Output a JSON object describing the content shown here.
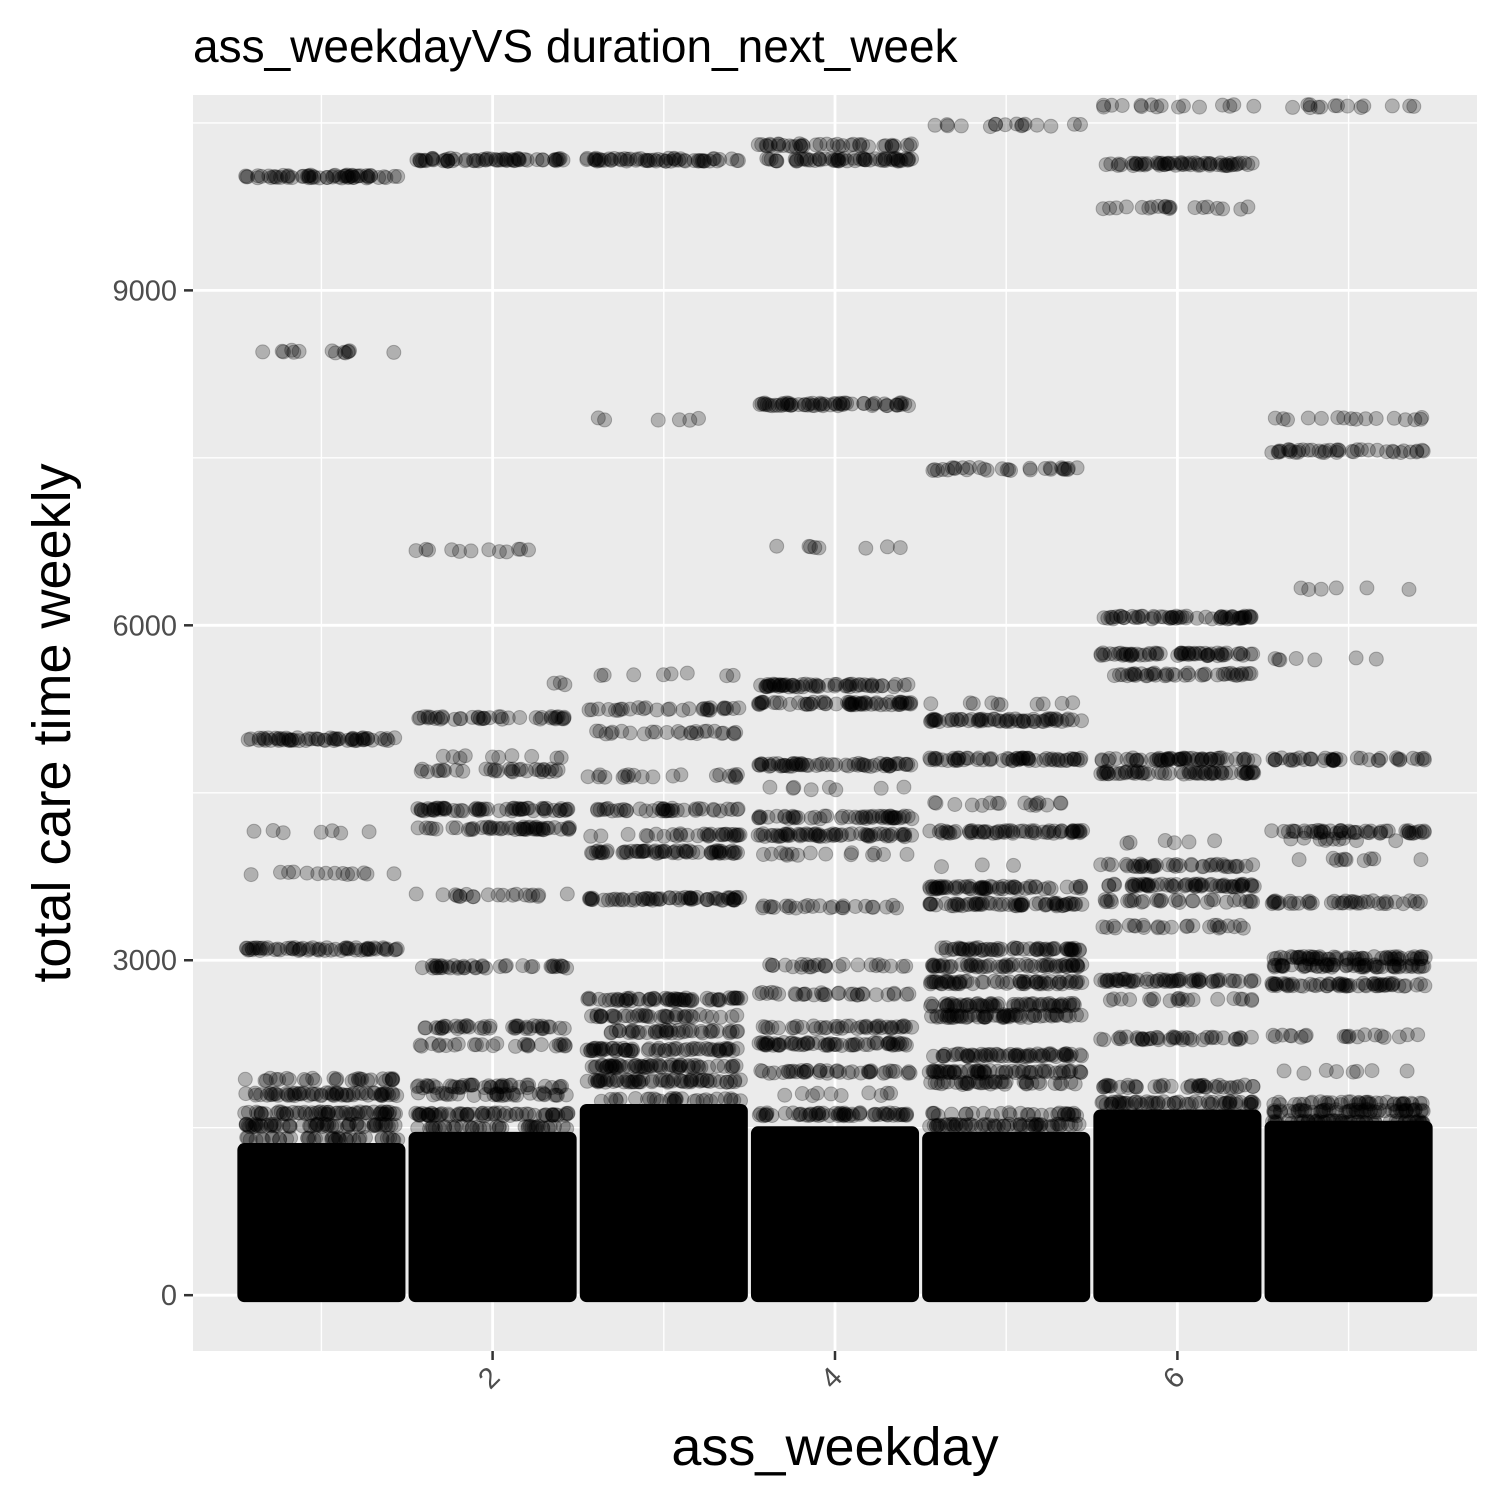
{
  "chart_data": {
    "type": "scatter",
    "title": "ass_weekdayVS duration_next_week",
    "xlabel": "ass_weekday",
    "ylabel": "total care time weekly",
    "xlim": [
      0.25,
      7.75
    ],
    "ylim": [
      -500,
      10750
    ],
    "x_ticks": [
      2,
      4,
      6
    ],
    "y_ticks": [
      0,
      3000,
      6000,
      9000
    ],
    "x_tick_rotation": -45,
    "grid": true,
    "point_color": "#000000",
    "point_alpha": 0.25,
    "jitter_width": 0.45,
    "series": [
      {
        "x": 1,
        "dense_max": 1300,
        "levels": [
          {
            "y": 10020,
            "n": 60
          },
          {
            "y": 8450,
            "n": 14
          },
          {
            "y": 4980,
            "n": 60
          },
          {
            "y": 4150,
            "n": 7
          },
          {
            "y": 3780,
            "n": 14
          },
          {
            "y": 3100,
            "n": 60
          },
          {
            "y": 1930,
            "n": 30
          },
          {
            "y": 1800,
            "n": 60
          },
          {
            "y": 1630,
            "n": 60
          },
          {
            "y": 1520,
            "n": 60
          },
          {
            "y": 1400,
            "n": 40
          }
        ]
      },
      {
        "x": 2,
        "dense_max": 1400,
        "levels": [
          {
            "y": 10170,
            "n": 60
          },
          {
            "y": 6670,
            "n": 12
          },
          {
            "y": 5480,
            "n": 3
          },
          {
            "y": 5170,
            "n": 40
          },
          {
            "y": 4820,
            "n": 10
          },
          {
            "y": 4700,
            "n": 30
          },
          {
            "y": 4350,
            "n": 60
          },
          {
            "y": 4180,
            "n": 50
          },
          {
            "y": 3580,
            "n": 20
          },
          {
            "y": 2940,
            "n": 40
          },
          {
            "y": 2400,
            "n": 40
          },
          {
            "y": 2240,
            "n": 25
          },
          {
            "y": 1870,
            "n": 40
          },
          {
            "y": 1800,
            "n": 30
          },
          {
            "y": 1620,
            "n": 60
          },
          {
            "y": 1500,
            "n": 40
          }
        ]
      },
      {
        "x": 3,
        "dense_max": 1650,
        "levels": [
          {
            "y": 10170,
            "n": 60
          },
          {
            "y": 7850,
            "n": 6
          },
          {
            "y": 5560,
            "n": 8
          },
          {
            "y": 5250,
            "n": 30
          },
          {
            "y": 5040,
            "n": 25
          },
          {
            "y": 4650,
            "n": 20
          },
          {
            "y": 4350,
            "n": 40
          },
          {
            "y": 4120,
            "n": 30
          },
          {
            "y": 3970,
            "n": 60
          },
          {
            "y": 3550,
            "n": 60
          },
          {
            "y": 2650,
            "n": 60
          },
          {
            "y": 2500,
            "n": 40
          },
          {
            "y": 2360,
            "n": 40
          },
          {
            "y": 2200,
            "n": 60
          },
          {
            "y": 2050,
            "n": 60
          },
          {
            "y": 1920,
            "n": 60
          },
          {
            "y": 1750,
            "n": 30
          }
        ]
      },
      {
        "x": 4,
        "dense_max": 1450,
        "levels": [
          {
            "y": 10300,
            "n": 40
          },
          {
            "y": 10170,
            "n": 60
          },
          {
            "y": 7980,
            "n": 60
          },
          {
            "y": 6700,
            "n": 8
          },
          {
            "y": 5460,
            "n": 60
          },
          {
            "y": 5300,
            "n": 60
          },
          {
            "y": 4750,
            "n": 60
          },
          {
            "y": 4540,
            "n": 8
          },
          {
            "y": 4280,
            "n": 50
          },
          {
            "y": 4120,
            "n": 60
          },
          {
            "y": 3950,
            "n": 15
          },
          {
            "y": 3480,
            "n": 25
          },
          {
            "y": 2950,
            "n": 25
          },
          {
            "y": 2700,
            "n": 30
          },
          {
            "y": 2400,
            "n": 40
          },
          {
            "y": 2250,
            "n": 60
          },
          {
            "y": 2000,
            "n": 40
          },
          {
            "y": 1800,
            "n": 10
          },
          {
            "y": 1620,
            "n": 60
          }
        ]
      },
      {
        "x": 5,
        "dense_max": 1400,
        "levels": [
          {
            "y": 10480,
            "n": 16
          },
          {
            "y": 7400,
            "n": 30
          },
          {
            "y": 5300,
            "n": 10
          },
          {
            "y": 5150,
            "n": 60
          },
          {
            "y": 4800,
            "n": 60
          },
          {
            "y": 4400,
            "n": 16
          },
          {
            "y": 4150,
            "n": 60
          },
          {
            "y": 3850,
            "n": 3
          },
          {
            "y": 3650,
            "n": 60
          },
          {
            "y": 3500,
            "n": 60
          },
          {
            "y": 3100,
            "n": 60
          },
          {
            "y": 2950,
            "n": 60
          },
          {
            "y": 2800,
            "n": 60
          },
          {
            "y": 2600,
            "n": 60
          },
          {
            "y": 2500,
            "n": 60
          },
          {
            "y": 2150,
            "n": 60
          },
          {
            "y": 2000,
            "n": 60
          },
          {
            "y": 1900,
            "n": 40
          },
          {
            "y": 1620,
            "n": 30
          },
          {
            "y": 1520,
            "n": 60
          }
        ]
      },
      {
        "x": 6,
        "dense_max": 1600,
        "levels": [
          {
            "y": 10650,
            "n": 16
          },
          {
            "y": 10130,
            "n": 60
          },
          {
            "y": 9740,
            "n": 20
          },
          {
            "y": 6070,
            "n": 60
          },
          {
            "y": 5740,
            "n": 60
          },
          {
            "y": 5560,
            "n": 40
          },
          {
            "y": 4800,
            "n": 60
          },
          {
            "y": 4680,
            "n": 60
          },
          {
            "y": 4060,
            "n": 6
          },
          {
            "y": 3850,
            "n": 40
          },
          {
            "y": 3670,
            "n": 60
          },
          {
            "y": 3530,
            "n": 30
          },
          {
            "y": 3300,
            "n": 25
          },
          {
            "y": 2820,
            "n": 60
          },
          {
            "y": 2650,
            "n": 20
          },
          {
            "y": 2300,
            "n": 40
          },
          {
            "y": 1870,
            "n": 40
          },
          {
            "y": 1720,
            "n": 60
          }
        ]
      },
      {
        "x": 7,
        "dense_max": 1500,
        "levels": [
          {
            "y": 10650,
            "n": 14
          },
          {
            "y": 7850,
            "n": 16
          },
          {
            "y": 7560,
            "n": 40
          },
          {
            "y": 6330,
            "n": 6
          },
          {
            "y": 5700,
            "n": 7
          },
          {
            "y": 4800,
            "n": 40
          },
          {
            "y": 4150,
            "n": 50
          },
          {
            "y": 4080,
            "n": 10
          },
          {
            "y": 3900,
            "n": 10
          },
          {
            "y": 3520,
            "n": 40
          },
          {
            "y": 3020,
            "n": 60
          },
          {
            "y": 2950,
            "n": 60
          },
          {
            "y": 2780,
            "n": 60
          },
          {
            "y": 2320,
            "n": 20
          },
          {
            "y": 2000,
            "n": 8
          },
          {
            "y": 1720,
            "n": 40
          },
          {
            "y": 1650,
            "n": 60
          },
          {
            "y": 1550,
            "n": 60
          }
        ]
      }
    ]
  }
}
